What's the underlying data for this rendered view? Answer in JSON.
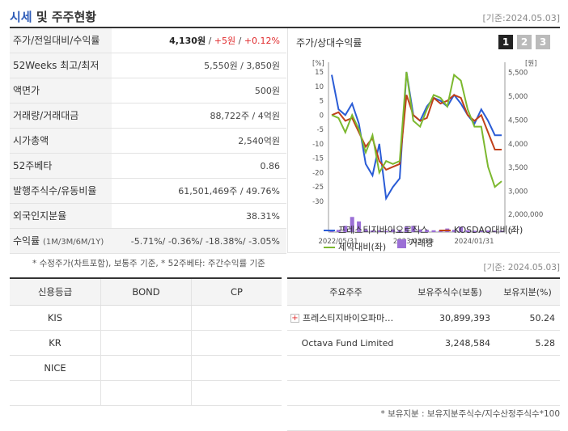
{
  "header": {
    "title_main": "시세",
    "title_sub": " 및 주주현황",
    "asof": "[기준:2024.05.03]"
  },
  "summary": {
    "rows": [
      {
        "label": "주가/전일대비/수익률",
        "price": "4,130원",
        "change": "+5원",
        "rate": "+0.12%"
      },
      {
        "label": "52Weeks 최고/최저",
        "value": "5,550원 / 3,850원"
      },
      {
        "label": "액면가",
        "value": "500원"
      },
      {
        "label": "거래량/거래대금",
        "value": "88,722주 / 4억원"
      },
      {
        "label": "시가총액",
        "value": "2,540억원"
      },
      {
        "label": "52주베타",
        "value": "0.86"
      },
      {
        "label": "발행주식수/유동비율",
        "value": "61,501,469주 / 49.76%"
      },
      {
        "label": "외국인지분율",
        "value": "38.31%"
      },
      {
        "label": "수익률",
        "period": "(1M/3M/6M/1Y)",
        "value": "-5.71%/ -0.36%/ -18.38%/ -3.05%"
      }
    ]
  },
  "chart_panel": {
    "title": "주가/상대수익률",
    "buttons": [
      "1",
      "2",
      "3"
    ]
  },
  "chart_data": {
    "type": "line",
    "left_unit": "[%]",
    "right_unit": "[원]",
    "left_ticks": [
      "15",
      "10",
      "5",
      "0",
      "-5",
      "-10",
      "-15",
      "-20",
      "-25",
      "-30"
    ],
    "right_ticks": [
      "5,500",
      "5,000",
      "4,500",
      "4,000",
      "3,500",
      "3,000"
    ],
    "volume_ticks": [
      "2,000,000",
      "0"
    ],
    "x_labels": [
      "2022/05/31",
      "2023/03/31",
      "2024/01/31"
    ],
    "ylim_left": [
      -30,
      15
    ],
    "ylim_volume": [
      0,
      2000000
    ],
    "series": [
      {
        "name": "프레스티지바이오로직스",
        "color": "#2a5cd6",
        "values": [
          14,
          2,
          0,
          4,
          -3,
          -17,
          -21,
          -10,
          -29,
          -25,
          -22,
          15,
          0,
          -2,
          3,
          6,
          5,
          3,
          7,
          4,
          0,
          -3,
          2,
          -2,
          -7,
          -7
        ]
      },
      {
        "name": "KOSDAQ대비(좌)",
        "color": "#c0401a",
        "values": [
          0,
          1,
          -2,
          -1,
          -6,
          -11,
          -8,
          -16,
          -19,
          -18,
          -17,
          7,
          0,
          -2,
          -1,
          6,
          4,
          5,
          7,
          6,
          0,
          -2,
          0,
          -6,
          -12,
          -12
        ]
      },
      {
        "name": "제약대비(좌)",
        "color": "#7cb82f",
        "values": [
          0,
          -1,
          -6,
          0,
          -5,
          -13,
          -7,
          -20,
          -16,
          -17,
          -16,
          15,
          -2,
          -4,
          2,
          7,
          6,
          3,
          14,
          12,
          2,
          -4,
          -4,
          -18,
          -25,
          -23
        ]
      }
    ],
    "volume": {
      "name": "거래량",
      "color": "#9b6fd6",
      "values": [
        120000,
        250000,
        700000,
        1700000,
        1200000,
        300000,
        180000,
        200000,
        150000,
        300000,
        180000,
        600000,
        700000,
        300000,
        250000,
        200000,
        180000,
        400000,
        250000,
        600000,
        200000,
        150000,
        200000,
        180000,
        160000,
        150000
      ]
    },
    "legend": [
      "프레스티지바이오로직스",
      "KOSDAQ대비(좌)",
      "제약대비(좌)",
      "거래량"
    ]
  },
  "notes": {
    "left": "* 수정주가(차트포함), 보통주 기준, * 52주베타: 주간수익률 기준",
    "right": "[기준: 2024.05.03]",
    "bottom": "* 보유지분 : 보유지분주식수/지수산정주식수*100"
  },
  "credit": {
    "headers": [
      "신용등급",
      "BOND",
      "CP"
    ],
    "rows": [
      {
        "agency": "KIS",
        "bond": "",
        "cp": ""
      },
      {
        "agency": "KR",
        "bond": "",
        "cp": ""
      },
      {
        "agency": "NICE",
        "bond": "",
        "cp": ""
      },
      {
        "agency": "",
        "bond": "",
        "cp": ""
      }
    ]
  },
  "holders": {
    "headers": [
      "주요주주",
      "보유주식수(보통)",
      "보유지분(%)"
    ],
    "rows": [
      {
        "name": "프레스티지바이오파마…",
        "shares": "30,899,393",
        "pct": "50.24"
      },
      {
        "name": "Octava Fund Limited",
        "shares": "3,248,584",
        "pct": "5.28"
      },
      {
        "name": "",
        "shares": "",
        "pct": ""
      },
      {
        "name": "",
        "shares": "",
        "pct": ""
      },
      {
        "name": "",
        "shares": "",
        "pct": ""
      }
    ]
  }
}
